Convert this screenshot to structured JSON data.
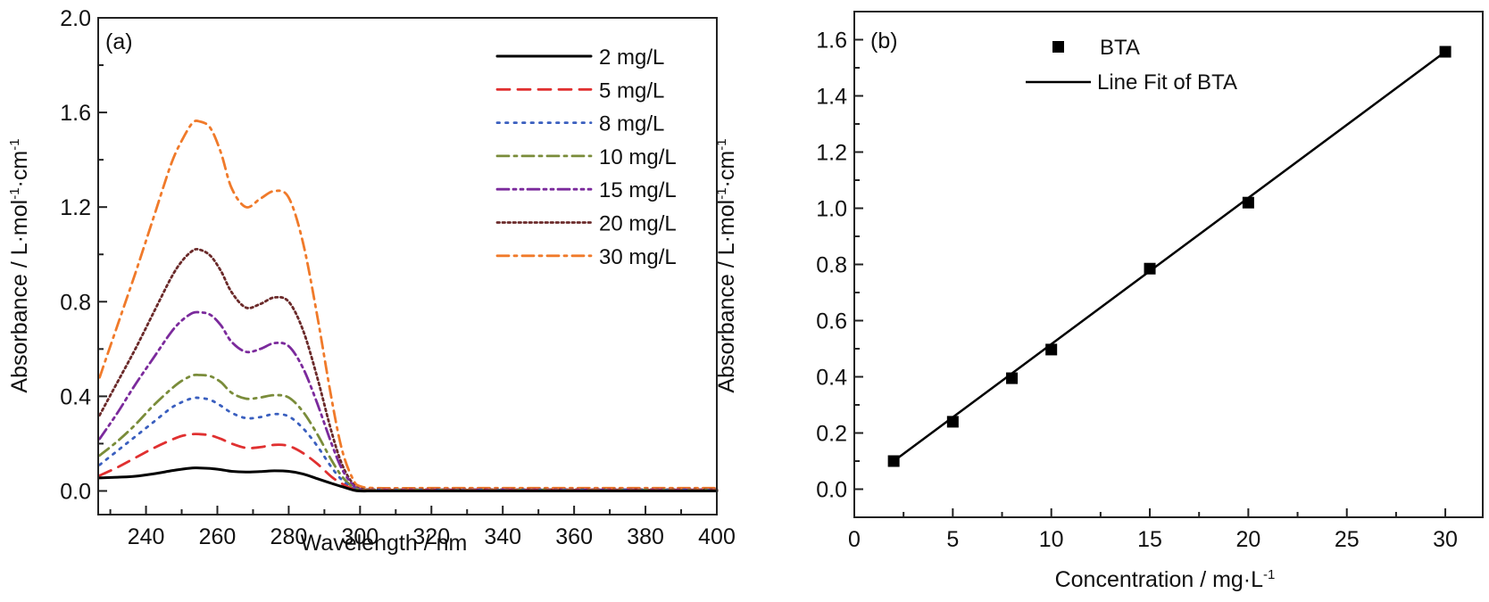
{
  "chart_data": [
    {
      "type": "line",
      "panel_label": "(a)",
      "xlabel": "Wavelength / nm",
      "ylabel": "Absorbance / L·mol⁻¹·cm⁻¹",
      "ylabel_parts": {
        "base": "Absorbance / L·mol",
        "sup1": "-1",
        "mid": "·cm",
        "sup2": "-1"
      },
      "xlim": [
        226.6,
        400
      ],
      "ylim": [
        -0.1,
        2.0
      ],
      "xticks": [
        240,
        260,
        280,
        300,
        320,
        340,
        360,
        380,
        400
      ],
      "xtick_labels": [
        "240",
        "260",
        "280",
        "300",
        "320",
        "340",
        "360",
        "380",
        "400"
      ],
      "yticks": [
        0.0,
        0.4,
        0.8,
        1.2,
        1.6,
        2.0
      ],
      "ytick_labels": [
        "0.0",
        "0.4",
        "0.8",
        "1.2",
        "1.6",
        "2.0"
      ],
      "grid": false,
      "legend_position": "top-right",
      "x": [
        227,
        232,
        237,
        242,
        247,
        250,
        253,
        255,
        258,
        261,
        264,
        268,
        272,
        276,
        280,
        284,
        288,
        292,
        295,
        298,
        300,
        305,
        320,
        340,
        360,
        380,
        400
      ],
      "series": [
        {
          "name": "2 mg/L",
          "color": "#000000",
          "dash": "solid",
          "values": [
            0.055,
            0.058,
            0.062,
            0.072,
            0.085,
            0.092,
            0.097,
            0.097,
            0.095,
            0.09,
            0.083,
            0.08,
            0.082,
            0.085,
            0.083,
            0.072,
            0.052,
            0.032,
            0.018,
            0.004,
            0.0,
            0.0,
            0.0,
            0.0,
            0.0,
            0.0,
            0.0
          ]
        },
        {
          "name": "5 mg/L",
          "color": "#e03030",
          "dash": "dashed",
          "values": [
            0.065,
            0.1,
            0.14,
            0.18,
            0.215,
            0.232,
            0.24,
            0.24,
            0.235,
            0.22,
            0.2,
            0.182,
            0.185,
            0.195,
            0.19,
            0.16,
            0.115,
            0.06,
            0.03,
            0.008,
            0.002,
            0.002,
            0.002,
            0.002,
            0.002,
            0.002,
            0.002
          ]
        },
        {
          "name": "8 mg/L",
          "color": "#3a5fbf",
          "dash": "dotted",
          "values": [
            0.11,
            0.17,
            0.23,
            0.29,
            0.35,
            0.375,
            0.392,
            0.393,
            0.385,
            0.36,
            0.33,
            0.308,
            0.312,
            0.325,
            0.315,
            0.265,
            0.19,
            0.1,
            0.045,
            0.012,
            0.004,
            0.003,
            0.003,
            0.003,
            0.003,
            0.003,
            0.003
          ]
        },
        {
          "name": "10 mg/L",
          "color": "#7a8c3a",
          "dash": "dashdot",
          "values": [
            0.15,
            0.21,
            0.28,
            0.36,
            0.43,
            0.465,
            0.488,
            0.49,
            0.485,
            0.46,
            0.415,
            0.39,
            0.395,
            0.405,
            0.395,
            0.335,
            0.24,
            0.13,
            0.06,
            0.016,
            0.006,
            0.004,
            0.004,
            0.004,
            0.004,
            0.004,
            0.004
          ]
        },
        {
          "name": "15 mg/L",
          "color": "#7b2a9c",
          "dash": "dashdotdot",
          "values": [
            0.22,
            0.33,
            0.45,
            0.56,
            0.67,
            0.72,
            0.752,
            0.755,
            0.745,
            0.7,
            0.63,
            0.588,
            0.6,
            0.625,
            0.612,
            0.52,
            0.37,
            0.2,
            0.09,
            0.025,
            0.008,
            0.005,
            0.005,
            0.005,
            0.005,
            0.005,
            0.005
          ]
        },
        {
          "name": "20 mg/L",
          "color": "#6b2a2a",
          "dash": "densedot",
          "values": [
            0.32,
            0.46,
            0.6,
            0.75,
            0.9,
            0.97,
            1.015,
            1.02,
            0.995,
            0.93,
            0.84,
            0.775,
            0.79,
            0.818,
            0.8,
            0.68,
            0.48,
            0.25,
            0.11,
            0.03,
            0.01,
            0.006,
            0.006,
            0.006,
            0.006,
            0.006,
            0.006
          ]
        },
        {
          "name": "30 mg/L",
          "color": "#f07a2a",
          "dash": "dashdot",
          "values": [
            0.48,
            0.7,
            0.92,
            1.15,
            1.38,
            1.48,
            1.555,
            1.562,
            1.535,
            1.43,
            1.28,
            1.2,
            1.235,
            1.268,
            1.24,
            1.05,
            0.74,
            0.39,
            0.17,
            0.05,
            0.02,
            0.012,
            0.012,
            0.012,
            0.012,
            0.012,
            0.012
          ]
        }
      ]
    },
    {
      "type": "scatter",
      "panel_label": "(b)",
      "xlabel": "Concentration / mg·L⁻¹",
      "xlabel_parts": {
        "base": "Concentration / mg·L",
        "sup": "-1"
      },
      "ylabel": "Absorbance / L·mol⁻¹·cm⁻¹",
      "ylabel_parts": {
        "base": "Absorbance / L·mol",
        "sup1": "-1",
        "mid": "·cm",
        "sup2": "-1"
      },
      "xlim": [
        0,
        31.9
      ],
      "ylim": [
        -0.1,
        1.7
      ],
      "xticks": [
        0,
        5,
        10,
        15,
        20,
        25,
        30
      ],
      "xtick_labels": [
        "0",
        "5",
        "10",
        "15",
        "20",
        "25",
        "30"
      ],
      "yticks": [
        0.0,
        0.2,
        0.4,
        0.6,
        0.8,
        1.0,
        1.2,
        1.4,
        1.6
      ],
      "ytick_labels": [
        "0.0",
        "0.2",
        "0.4",
        "0.6",
        "0.8",
        "1.0",
        "1.2",
        "1.4",
        "1.6"
      ],
      "grid": false,
      "legend_position": "top-center",
      "series": [
        {
          "name": "BTA",
          "marker": "square",
          "color": "#000000",
          "x": [
            2,
            5,
            8,
            10,
            15,
            20,
            30
          ],
          "y": [
            0.1,
            0.24,
            0.395,
            0.497,
            0.785,
            1.02,
            1.557
          ]
        },
        {
          "name": "Line Fit of BTA",
          "kind": "fit-line",
          "color": "#000000",
          "x": [
            2,
            30
          ],
          "y": [
            0.1,
            1.557
          ]
        }
      ]
    }
  ]
}
